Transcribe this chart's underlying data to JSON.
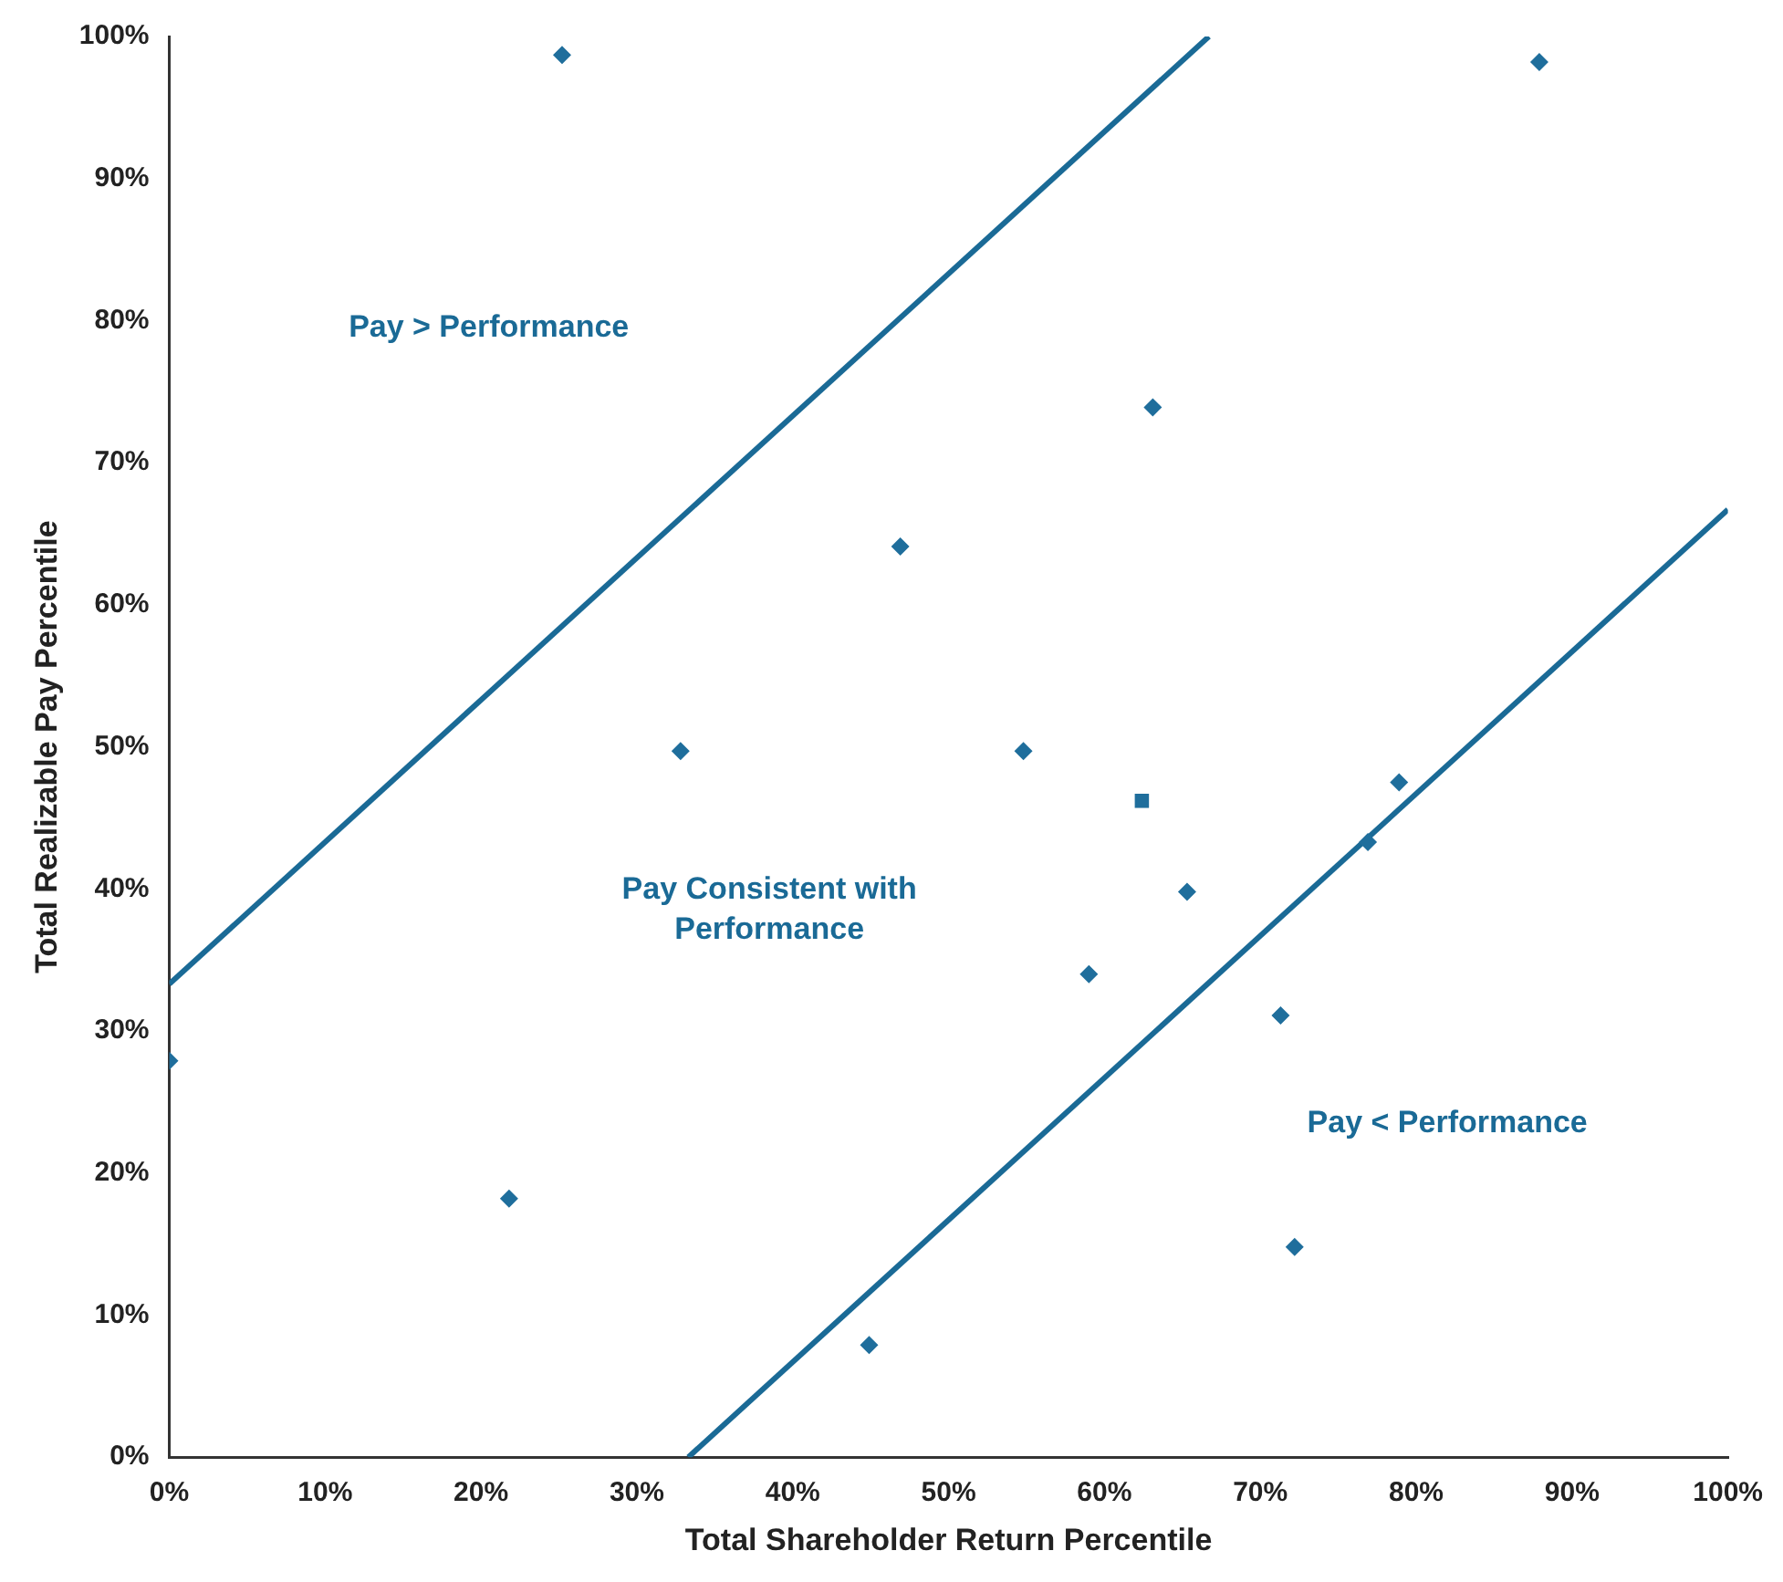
{
  "chart_data": {
    "type": "scatter",
    "xlabel": "Total Shareholder Return Percentile",
    "ylabel": "Total Realizable Pay Percentile",
    "xlim": [
      0,
      100
    ],
    "ylim": [
      0,
      100
    ],
    "xticks": [
      {
        "value": 0,
        "label": "0%"
      },
      {
        "value": 10,
        "label": "10%"
      },
      {
        "value": 20,
        "label": "20%"
      },
      {
        "value": 30,
        "label": "30%"
      },
      {
        "value": 40,
        "label": "40%"
      },
      {
        "value": 50,
        "label": "50%"
      },
      {
        "value": 60,
        "label": "60%"
      },
      {
        "value": 70,
        "label": "70%"
      },
      {
        "value": 80,
        "label": "80%"
      },
      {
        "value": 90,
        "label": "90%"
      },
      {
        "value": 100,
        "label": "100%"
      }
    ],
    "yticks": [
      {
        "value": 0,
        "label": "0%"
      },
      {
        "value": 10,
        "label": "10%"
      },
      {
        "value": 20,
        "label": "20%"
      },
      {
        "value": 30,
        "label": "30%"
      },
      {
        "value": 40,
        "label": "40%"
      },
      {
        "value": 50,
        "label": "50%"
      },
      {
        "value": 60,
        "label": "60%"
      },
      {
        "value": 70,
        "label": "70%"
      },
      {
        "value": 80,
        "label": "80%"
      },
      {
        "value": 90,
        "label": "90%"
      },
      {
        "value": 100,
        "label": "100%"
      }
    ],
    "grid": false,
    "legend": false,
    "series": [
      {
        "type": "scatter",
        "marker": "diamond",
        "color": "#1f6e9c",
        "x": [
          25.2,
          87.9,
          63.1,
          46.9,
          32.8,
          54.8,
          78.9,
          76.9,
          65.3,
          59.0,
          71.3,
          0,
          21.8,
          72.2,
          44.9
        ],
        "values": [
          98.7,
          98.2,
          73.9,
          64.1,
          49.7,
          49.7,
          47.5,
          43.3,
          39.8,
          34.0,
          31.1,
          27.9,
          18.2,
          14.8,
          7.9
        ]
      },
      {
        "type": "scatter",
        "marker": "square",
        "color": "#1f6e9c",
        "x": [
          62.4
        ],
        "values": [
          46.2
        ]
      },
      {
        "type": "line",
        "marker": "none",
        "color": "#1a6a96",
        "x": [
          0,
          66.7
        ],
        "values": [
          33.3,
          100
        ]
      },
      {
        "type": "line",
        "marker": "none",
        "color": "#1a6a96",
        "x": [
          33.3,
          100
        ],
        "values": [
          0,
          66.7
        ]
      }
    ],
    "annotations": [
      "Pay > Performance",
      "Pay Consistent with\nPerformance",
      "Pay < Performance"
    ]
  }
}
